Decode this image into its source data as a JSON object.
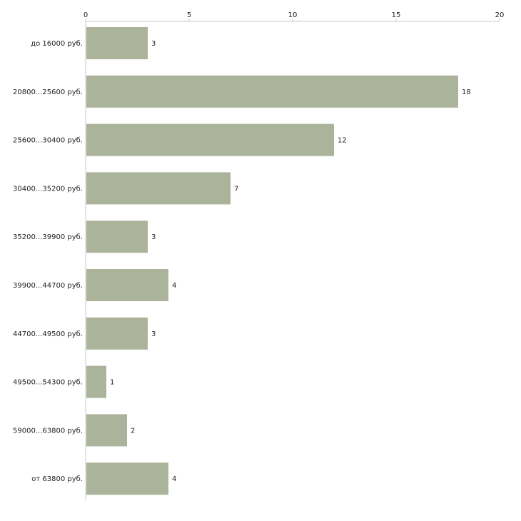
{
  "chart_data": {
    "type": "bar",
    "orientation": "horizontal",
    "title": "",
    "xlabel": "",
    "ylabel": "",
    "xlim": [
      0,
      20
    ],
    "ticks": [
      0,
      5,
      10,
      15,
      20
    ],
    "tick_labels": [
      "0",
      "5",
      "10",
      "15",
      "20"
    ],
    "axis_position": "top",
    "grid": false,
    "bar_color": "#abb39a",
    "categories": [
      "до 16000 руб.",
      "20800...25600 руб.",
      "25600...30400 руб.",
      "30400...35200 руб.",
      "35200...39900 руб.",
      "39900...44700 руб.",
      "44700...49500 руб.",
      "49500...54300 руб.",
      "59000...63800 руб.",
      "от 63800 руб."
    ],
    "values": [
      3,
      18,
      12,
      7,
      3,
      4,
      3,
      1,
      2,
      4
    ],
    "value_labels": [
      "3",
      "18",
      "12",
      "7",
      "3",
      "4",
      "3",
      "1",
      "2",
      "4"
    ]
  }
}
